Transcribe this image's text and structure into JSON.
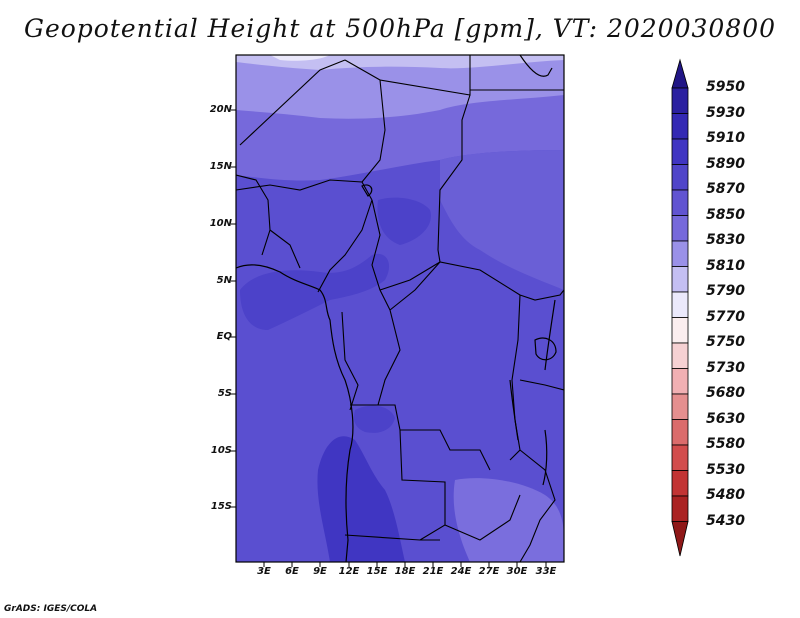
{
  "title": "Geopotential Height at 500hPa [gpm], VT: 2020030800",
  "credit": "GrADS: IGES/COLA",
  "lat_labels": [
    "20N",
    "15N",
    "10N",
    "5N",
    "EQ",
    "5S",
    "10S",
    "15S"
  ],
  "lon_labels": [
    "3E",
    "6E",
    "9E",
    "12E",
    "15E",
    "18E",
    "21E",
    "24E",
    "27E",
    "30E",
    "33E"
  ],
  "colorbar": {
    "levels": [
      "5950",
      "5930",
      "5910",
      "5890",
      "5870",
      "5850",
      "5830",
      "5810",
      "5790",
      "5770",
      "5750",
      "5730",
      "5680",
      "5630",
      "5580",
      "5530",
      "5480",
      "5430"
    ],
    "colors": [
      "#211686",
      "#2b20a0",
      "#3429b4",
      "#4035c2",
      "#5045c9",
      "#6154d1",
      "#7669db",
      "#9a91e8",
      "#c4bff2",
      "#ebe9fb",
      "#fbeeef",
      "#f6d1d3",
      "#f1b0b3",
      "#e58f8f",
      "#db6c6c",
      "#d24d4d",
      "#c23434",
      "#aa2222",
      "#8f1818"
    ]
  },
  "map_colors": {
    "dominant": "#5a4fd0",
    "deep": "#4036c2",
    "mid": "#6d60d7",
    "light": "#8577de",
    "lighter": "#a396e9",
    "palest": "#cfc9f4"
  }
}
